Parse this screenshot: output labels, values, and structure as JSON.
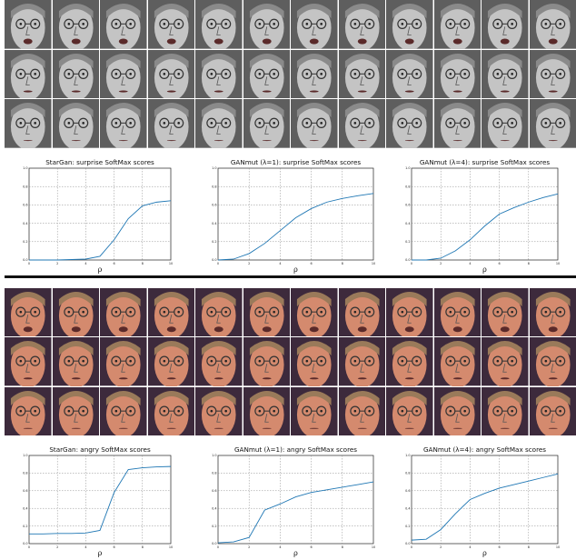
{
  "face_sets": [
    {
      "rows": 3,
      "cols": 12,
      "tone": "grayscale",
      "bg": "#5e5e5e",
      "skin": "#c4c4c4",
      "hair": "#8a8a8a"
    },
    {
      "rows": 3,
      "cols": 12,
      "tone": "color",
      "bg": "#3d2a3c",
      "skin": "#d48a6e",
      "hair": "#9a7a5a"
    }
  ],
  "chart_data": [
    {
      "type": "line",
      "title": "StarGan: surprise SoftMax scores",
      "xlabel": "ρ",
      "ylabel": "",
      "xlim": [
        0,
        10
      ],
      "ylim": [
        0,
        1
      ],
      "grid": true,
      "xticks": [
        "0",
        "2",
        "4",
        "6",
        "8",
        "10"
      ],
      "yticks": [
        "0.0",
        "0.2",
        "0.4",
        "0.6",
        "0.8",
        "1.0"
      ],
      "x": [
        0,
        1,
        2,
        3,
        4,
        5,
        6,
        7,
        8,
        9,
        10
      ],
      "series": [
        {
          "values": [
            0.0,
            0.0,
            0.0,
            0.005,
            0.01,
            0.04,
            0.22,
            0.45,
            0.59,
            0.63,
            0.645
          ],
          "color": "#1f77b4"
        }
      ]
    },
    {
      "type": "line",
      "title": "GANmut (λ=1): surprise SoftMax scores",
      "xlabel": "ρ",
      "ylabel": "",
      "xlim": [
        0,
        10
      ],
      "ylim": [
        0,
        1
      ],
      "grid": true,
      "xticks": [
        "0",
        "2",
        "4",
        "6",
        "8",
        "10"
      ],
      "yticks": [
        "0.0",
        "0.2",
        "0.4",
        "0.6",
        "0.8",
        "1.0"
      ],
      "x": [
        0,
        1,
        2,
        3,
        4,
        5,
        6,
        7,
        8,
        9,
        10
      ],
      "series": [
        {
          "values": [
            0.0,
            0.01,
            0.07,
            0.18,
            0.32,
            0.46,
            0.56,
            0.63,
            0.67,
            0.7,
            0.725
          ],
          "color": "#1f77b4"
        }
      ]
    },
    {
      "type": "line",
      "title": "GANmut (λ=4): surprise SoftMax scores",
      "xlabel": "ρ",
      "ylabel": "",
      "xlim": [
        0,
        10
      ],
      "ylim": [
        0,
        1
      ],
      "grid": true,
      "xticks": [
        "0",
        "2",
        "4",
        "6",
        "8",
        "10"
      ],
      "yticks": [
        "0.0",
        "0.2",
        "0.4",
        "0.6",
        "0.8",
        "1.0"
      ],
      "x": [
        0,
        1,
        2,
        3,
        4,
        5,
        6,
        7,
        8,
        9,
        10
      ],
      "series": [
        {
          "values": [
            0.0,
            0.0,
            0.02,
            0.1,
            0.22,
            0.37,
            0.5,
            0.57,
            0.63,
            0.68,
            0.72
          ],
          "color": "#1f77b4"
        }
      ]
    },
    {
      "type": "line",
      "title": "StarGan: angry SoftMax scores",
      "xlabel": "ρ",
      "ylabel": "",
      "xlim": [
        0,
        10
      ],
      "ylim": [
        0,
        1
      ],
      "grid": true,
      "xticks": [
        "0",
        "2",
        "4",
        "6",
        "8",
        "10"
      ],
      "yticks": [
        "0.0",
        "0.2",
        "0.4",
        "0.6",
        "0.8",
        "1.0"
      ],
      "x": [
        0,
        1,
        2,
        3,
        4,
        5,
        6,
        7,
        8,
        9,
        10
      ],
      "series": [
        {
          "values": [
            0.11,
            0.11,
            0.115,
            0.115,
            0.12,
            0.15,
            0.58,
            0.84,
            0.86,
            0.87,
            0.875
          ],
          "color": "#1f77b4"
        }
      ]
    },
    {
      "type": "line",
      "title": "GANmut  (λ=1): angry SoftMax scores",
      "xlabel": "ρ",
      "ylabel": "",
      "xlim": [
        0,
        10
      ],
      "ylim": [
        0,
        1
      ],
      "grid": true,
      "xticks": [
        "0",
        "2",
        "4",
        "6",
        "8",
        "10"
      ],
      "yticks": [
        "0.0",
        "0.2",
        "0.4",
        "0.6",
        "0.8",
        "1.0"
      ],
      "x": [
        0,
        1,
        2,
        3,
        4,
        5,
        6,
        7,
        8,
        9,
        10
      ],
      "series": [
        {
          "values": [
            0.01,
            0.02,
            0.07,
            0.38,
            0.45,
            0.53,
            0.58,
            0.61,
            0.64,
            0.67,
            0.7
          ],
          "color": "#1f77b4"
        }
      ]
    },
    {
      "type": "line",
      "title": "GANmut (λ=4): angry SoftMax scores",
      "xlabel": "ρ",
      "ylabel": "",
      "xlim": [
        0,
        10
      ],
      "ylim": [
        0,
        1
      ],
      "grid": true,
      "xticks": [
        "0",
        "2",
        "4",
        "6",
        "8",
        "10"
      ],
      "yticks": [
        "0.0",
        "0.2",
        "0.4",
        "0.6",
        "0.8",
        "1.0"
      ],
      "x": [
        0,
        1,
        2,
        3,
        4,
        5,
        6,
        7,
        8,
        9,
        10
      ],
      "series": [
        {
          "values": [
            0.04,
            0.05,
            0.16,
            0.34,
            0.5,
            0.57,
            0.63,
            0.67,
            0.71,
            0.75,
            0.79
          ],
          "color": "#1f77b4"
        }
      ]
    }
  ]
}
